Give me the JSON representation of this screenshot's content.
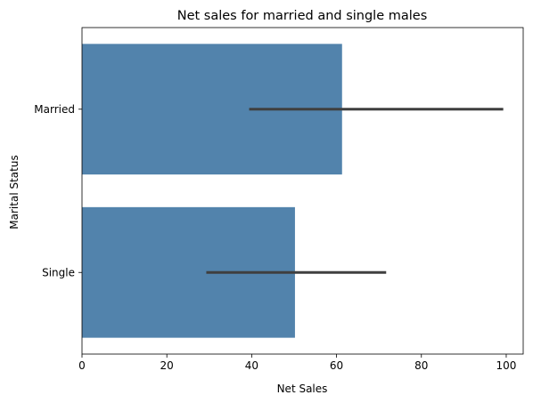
{
  "chart_data": {
    "type": "bar",
    "orientation": "horizontal",
    "title": "Net sales for married and single males",
    "xlabel": "Net Sales",
    "ylabel": "Marital Status",
    "xlim": [
      0,
      104
    ],
    "xticks": [
      0,
      20,
      40,
      60,
      80,
      100
    ],
    "grid": false,
    "bar_color": "#5283ac",
    "errorbar_color": "#3f3f3f",
    "categories": [
      "Married",
      "Single"
    ],
    "values": [
      61.3,
      50.2
    ],
    "error_low": [
      39.4,
      29.3
    ],
    "error_high": [
      99.3,
      71.7
    ]
  }
}
